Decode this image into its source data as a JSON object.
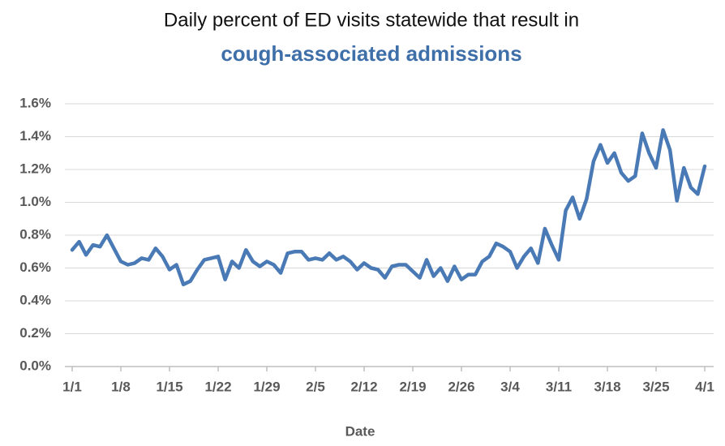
{
  "chart_data": {
    "type": "line",
    "title": "Daily percent of ED visits statewide that result in",
    "subtitle": "cough-associated admissions",
    "x_label": "Date",
    "categories": [
      "1/1",
      null,
      null,
      null,
      null,
      null,
      null,
      "1/8",
      null,
      null,
      null,
      null,
      null,
      null,
      "1/15",
      null,
      null,
      null,
      null,
      null,
      null,
      "1/22",
      null,
      null,
      null,
      null,
      null,
      null,
      "1/29",
      null,
      null,
      null,
      null,
      null,
      null,
      "2/5",
      null,
      null,
      null,
      null,
      null,
      null,
      "2/12",
      null,
      null,
      null,
      null,
      null,
      null,
      "2/19",
      null,
      null,
      null,
      null,
      null,
      null,
      "2/26",
      null,
      null,
      null,
      null,
      null,
      null,
      "3/4",
      null,
      null,
      null,
      null,
      null,
      null,
      "3/11",
      null,
      null,
      null,
      null,
      null,
      null,
      "3/18",
      null,
      null,
      null,
      null,
      null,
      null,
      "3/25",
      null,
      null,
      null,
      null,
      null,
      null,
      "4/1"
    ],
    "values": [
      0.71,
      0.76,
      0.68,
      0.74,
      0.73,
      0.8,
      0.72,
      0.64,
      0.62,
      0.63,
      0.66,
      0.65,
      0.72,
      0.67,
      0.59,
      0.62,
      0.5,
      0.52,
      0.59,
      0.65,
      0.66,
      0.67,
      0.53,
      0.64,
      0.6,
      0.71,
      0.64,
      0.61,
      0.64,
      0.62,
      0.57,
      0.69,
      0.7,
      0.7,
      0.65,
      0.66,
      0.65,
      0.69,
      0.65,
      0.67,
      0.64,
      0.59,
      0.63,
      0.6,
      0.59,
      0.54,
      0.61,
      0.62,
      0.62,
      0.58,
      0.54,
      0.65,
      0.55,
      0.6,
      0.52,
      0.61,
      0.53,
      0.56,
      0.56,
      0.64,
      0.67,
      0.75,
      0.73,
      0.7,
      0.6,
      0.67,
      0.72,
      0.63,
      0.84,
      0.74,
      0.65,
      0.95,
      1.03,
      0.9,
      1.02,
      1.25,
      1.35,
      1.24,
      1.3,
      1.18,
      1.13,
      1.16,
      1.42,
      1.3,
      1.21,
      1.44,
      1.32,
      1.01,
      1.21,
      1.09,
      1.05,
      1.22
    ],
    "color": "#4a7ab5",
    "ylim": [
      0,
      1.6
    ],
    "yticks": [
      {
        "value": 0,
        "label": "0.0%"
      },
      {
        "value": 0.2,
        "label": "0.2%"
      },
      {
        "value": 0.4,
        "label": "0.4%"
      },
      {
        "value": 0.6,
        "label": "0.6%"
      },
      {
        "value": 0.8,
        "label": "0.8%"
      },
      {
        "value": 1.0,
        "label": "1.0%"
      },
      {
        "value": 1.2,
        "label": "1.2%"
      },
      {
        "value": 1.4,
        "label": "1.4%"
      },
      {
        "value": 1.6,
        "label": "1.6%"
      }
    ],
    "grid": true
  }
}
